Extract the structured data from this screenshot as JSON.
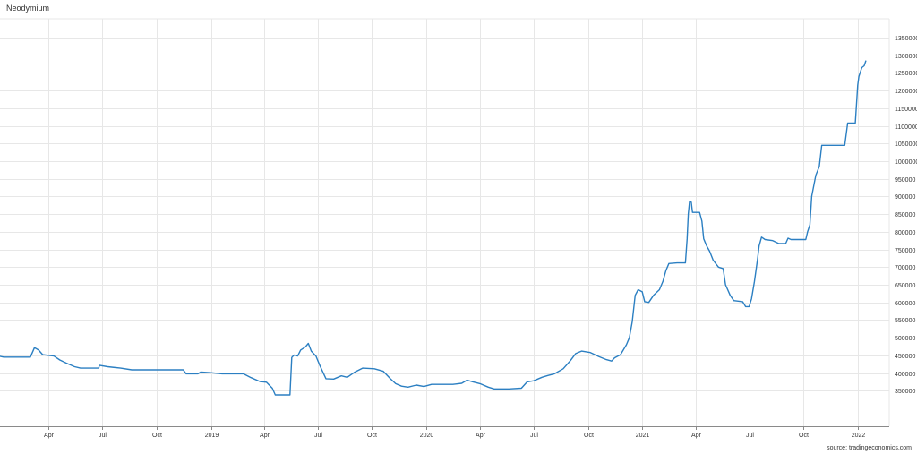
{
  "chart_title": "Neodymium",
  "source": "source: tradingeconomics.com",
  "colors": {
    "line": "#2b7fc2",
    "grid": "#e7e7e7",
    "axis": "#8a8a8a"
  },
  "chart_data": {
    "type": "line",
    "title": "Neodymium",
    "xlabel": "",
    "ylabel": "",
    "ylim": [
      300000,
      1350000
    ],
    "xlim": [
      "2018-01-01",
      "2022-02-28"
    ],
    "grid": true,
    "legend": "none",
    "y_ticks": [
      350000,
      400000,
      450000,
      500000,
      550000,
      600000,
      650000,
      700000,
      750000,
      800000,
      850000,
      900000,
      950000,
      1000000,
      1050000,
      1100000,
      1150000,
      1200000,
      1250000,
      1300000,
      1350000
    ],
    "y_tick_labels": [
      "350000",
      "400000",
      "450000",
      "500000",
      "550000",
      "600000",
      "650000",
      "700000",
      "750000",
      "800000",
      "850000",
      "900000",
      "950000",
      "1000000",
      "1050000",
      "1100000",
      "1150000",
      "1200000",
      "1250000",
      "1300000",
      "1350000"
    ],
    "x_ticks": [
      {
        "date": "2018-04-01",
        "label": "Apr"
      },
      {
        "date": "2018-07-01",
        "label": "Jul"
      },
      {
        "date": "2018-10-01",
        "label": "Oct"
      },
      {
        "date": "2019-01-01",
        "label": "2019"
      },
      {
        "date": "2019-04-01",
        "label": "Apr"
      },
      {
        "date": "2019-07-01",
        "label": "Jul"
      },
      {
        "date": "2019-10-01",
        "label": "Oct"
      },
      {
        "date": "2020-01-01",
        "label": "2020"
      },
      {
        "date": "2020-04-01",
        "label": "Apr"
      },
      {
        "date": "2020-07-01",
        "label": "Jul"
      },
      {
        "date": "2020-10-01",
        "label": "Oct"
      },
      {
        "date": "2021-01-01",
        "label": "2021"
      },
      {
        "date": "2021-04-01",
        "label": "Apr"
      },
      {
        "date": "2021-07-01",
        "label": "Jul"
      },
      {
        "date": "2021-10-01",
        "label": "Oct"
      },
      {
        "date": "2022-01-01",
        "label": "2022"
      }
    ],
    "series": [
      {
        "name": "",
        "points": [
          [
            "2018-01-01",
            450000
          ],
          [
            "2018-01-15",
            445000
          ],
          [
            "2018-03-01",
            445000
          ],
          [
            "2018-03-08",
            472000
          ],
          [
            "2018-03-15",
            465000
          ],
          [
            "2018-03-22",
            452000
          ],
          [
            "2018-04-10",
            448000
          ],
          [
            "2018-04-20",
            437000
          ],
          [
            "2018-05-01",
            428000
          ],
          [
            "2018-05-15",
            418000
          ],
          [
            "2018-05-25",
            414000
          ],
          [
            "2018-06-25",
            414000
          ],
          [
            "2018-06-26",
            422000
          ],
          [
            "2018-07-10",
            418000
          ],
          [
            "2018-08-01",
            414000
          ],
          [
            "2018-08-20",
            409000
          ],
          [
            "2018-11-15",
            409000
          ],
          [
            "2018-11-20",
            398000
          ],
          [
            "2018-12-10",
            398000
          ],
          [
            "2018-12-15",
            403000
          ],
          [
            "2019-01-01",
            401000
          ],
          [
            "2019-01-20",
            398000
          ],
          [
            "2019-02-25",
            398000
          ],
          [
            "2019-03-10",
            387000
          ],
          [
            "2019-03-25",
            376000
          ],
          [
            "2019-04-05",
            374000
          ],
          [
            "2019-04-15",
            357000
          ],
          [
            "2019-04-20",
            338000
          ],
          [
            "2019-05-15",
            338000
          ],
          [
            "2019-05-18",
            444000
          ],
          [
            "2019-05-22",
            451000
          ],
          [
            "2019-05-28",
            448000
          ],
          [
            "2019-06-02",
            465000
          ],
          [
            "2019-06-10",
            474000
          ],
          [
            "2019-06-15",
            484000
          ],
          [
            "2019-06-20",
            462000
          ],
          [
            "2019-06-28",
            448000
          ],
          [
            "2019-07-05",
            420000
          ],
          [
            "2019-07-15",
            384000
          ],
          [
            "2019-07-28",
            383000
          ],
          [
            "2019-08-10",
            392000
          ],
          [
            "2019-08-20",
            388000
          ],
          [
            "2019-09-01",
            402000
          ],
          [
            "2019-09-15",
            414000
          ],
          [
            "2019-10-05",
            412000
          ],
          [
            "2019-10-20",
            405000
          ],
          [
            "2019-11-01",
            384000
          ],
          [
            "2019-11-10",
            370000
          ],
          [
            "2019-11-20",
            363000
          ],
          [
            "2019-12-01",
            360000
          ],
          [
            "2019-12-15",
            366000
          ],
          [
            "2019-12-28",
            362000
          ],
          [
            "2020-01-10",
            368000
          ],
          [
            "2020-02-15",
            368000
          ],
          [
            "2020-03-01",
            371000
          ],
          [
            "2020-03-10",
            380000
          ],
          [
            "2020-03-20",
            375000
          ],
          [
            "2020-04-01",
            370000
          ],
          [
            "2020-04-15",
            360000
          ],
          [
            "2020-04-25",
            355000
          ],
          [
            "2020-05-20",
            355000
          ],
          [
            "2020-06-10",
            357000
          ],
          [
            "2020-06-20",
            375000
          ],
          [
            "2020-07-01",
            378000
          ],
          [
            "2020-07-15",
            388000
          ],
          [
            "2020-07-25",
            393000
          ],
          [
            "2020-08-05",
            398000
          ],
          [
            "2020-08-20",
            412000
          ],
          [
            "2020-09-01",
            435000
          ],
          [
            "2020-09-10",
            455000
          ],
          [
            "2020-09-20",
            462000
          ],
          [
            "2020-10-05",
            458000
          ],
          [
            "2020-10-20",
            446000
          ],
          [
            "2020-11-01",
            438000
          ],
          [
            "2020-11-10",
            434000
          ],
          [
            "2020-11-15",
            443000
          ],
          [
            "2020-11-25",
            452000
          ],
          [
            "2020-12-05",
            480000
          ],
          [
            "2020-12-10",
            500000
          ],
          [
            "2020-12-15",
            545000
          ],
          [
            "2020-12-20",
            620000
          ],
          [
            "2020-12-25",
            636000
          ],
          [
            "2021-01-01",
            630000
          ],
          [
            "2021-01-05",
            602000
          ],
          [
            "2021-01-12",
            600000
          ],
          [
            "2021-01-20",
            620000
          ],
          [
            "2021-01-30",
            636000
          ],
          [
            "2021-02-05",
            660000
          ],
          [
            "2021-02-10",
            690000
          ],
          [
            "2021-02-15",
            710000
          ],
          [
            "2021-03-01",
            712000
          ],
          [
            "2021-03-15",
            712000
          ],
          [
            "2021-03-18",
            780000
          ],
          [
            "2021-03-20",
            850000
          ],
          [
            "2021-03-22",
            885000
          ],
          [
            "2021-03-25",
            884000
          ],
          [
            "2021-03-27",
            855000
          ],
          [
            "2021-04-08",
            855000
          ],
          [
            "2021-04-12",
            830000
          ],
          [
            "2021-04-15",
            780000
          ],
          [
            "2021-04-20",
            760000
          ],
          [
            "2021-04-25",
            745000
          ],
          [
            "2021-05-01",
            720000
          ],
          [
            "2021-05-10",
            700000
          ],
          [
            "2021-05-18",
            696000
          ],
          [
            "2021-05-22",
            650000
          ],
          [
            "2021-05-30",
            620000
          ],
          [
            "2021-06-05",
            605000
          ],
          [
            "2021-06-20",
            602000
          ],
          [
            "2021-06-25",
            588000
          ],
          [
            "2021-07-01",
            588000
          ],
          [
            "2021-07-05",
            610000
          ],
          [
            "2021-07-10",
            660000
          ],
          [
            "2021-07-15",
            720000
          ],
          [
            "2021-07-18",
            760000
          ],
          [
            "2021-07-22",
            785000
          ],
          [
            "2021-07-28",
            778000
          ],
          [
            "2021-08-10",
            775000
          ],
          [
            "2021-08-20",
            767000
          ],
          [
            "2021-09-01",
            767000
          ],
          [
            "2021-09-05",
            782000
          ],
          [
            "2021-09-10",
            778000
          ],
          [
            "2021-09-25",
            778000
          ],
          [
            "2021-10-05",
            778000
          ],
          [
            "2021-10-08",
            800000
          ],
          [
            "2021-10-12",
            820000
          ],
          [
            "2021-10-15",
            900000
          ],
          [
            "2021-10-22",
            960000
          ],
          [
            "2021-10-28",
            985000
          ],
          [
            "2021-11-01",
            1045000
          ],
          [
            "2021-12-10",
            1045000
          ],
          [
            "2021-12-15",
            1108000
          ],
          [
            "2021-12-28",
            1108000
          ],
          [
            "2022-01-01",
            1215000
          ],
          [
            "2022-01-03",
            1240000
          ],
          [
            "2022-01-08",
            1265000
          ],
          [
            "2022-01-12",
            1270000
          ],
          [
            "2022-01-15",
            1285000
          ]
        ]
      }
    ]
  }
}
